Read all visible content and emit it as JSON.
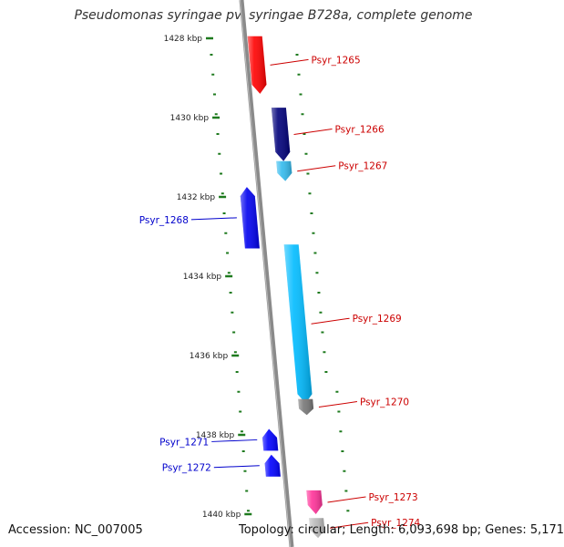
{
  "title": "Pseudomonas syringae pv. syringae B728a, complete genome",
  "footer": {
    "accession": "Accession: NC_007005",
    "topology": "Topology: circular; Length: 6,093,698 bp; Genes: 5,171"
  },
  "colors": {
    "backbone": "#8a8a8a",
    "tick": "#1e7a1e",
    "label_forward": "#cc0000",
    "label_reverse": "#0000cc"
  },
  "ticks": [
    {
      "label": "1428 kbp",
      "pos": 1428
    },
    {
      "label": "1430 kbp",
      "pos": 1430
    },
    {
      "label": "1432 kbp",
      "pos": 1432
    },
    {
      "label": "1434 kbp",
      "pos": 1434
    },
    {
      "label": "1436 kbp",
      "pos": 1436
    },
    {
      "label": "1438 kbp",
      "pos": 1438
    },
    {
      "label": "1440 kbp",
      "pos": 1440
    }
  ],
  "genes": [
    {
      "name": "Psyr_1265",
      "strand": "+",
      "start": 1427.95,
      "end": 1429.4,
      "color": "#ff0000",
      "label_color": "#cc0000"
    },
    {
      "name": "Psyr_1266",
      "strand": "+",
      "start": 1429.75,
      "end": 1431.1,
      "color": "#00007a",
      "label_color": "#cc0000"
    },
    {
      "name": "Psyr_1267",
      "strand": "+",
      "start": 1431.1,
      "end": 1431.6,
      "color": "#33bbee",
      "label_color": "#cc0000"
    },
    {
      "name": "Psyr_1268",
      "strand": "-",
      "start": 1431.75,
      "end": 1433.3,
      "color": "#0000ee",
      "label_color": "#0000cc"
    },
    {
      "name": "Psyr_1269",
      "strand": "+",
      "start": 1433.2,
      "end": 1437.2,
      "color": "#00bbff",
      "label_color": "#cc0000"
    },
    {
      "name": "Psyr_1270",
      "strand": "+",
      "start": 1437.1,
      "end": 1437.5,
      "color": "#777777",
      "label_color": "#cc0000"
    },
    {
      "name": "Psyr_1271",
      "strand": "-",
      "start": 1437.85,
      "end": 1438.4,
      "color": "#0000ff",
      "label_color": "#0000cc"
    },
    {
      "name": "Psyr_1272",
      "strand": "-",
      "start": 1438.5,
      "end": 1439.05,
      "color": "#0000ff",
      "label_color": "#0000cc"
    },
    {
      "name": "Psyr_1273",
      "strand": "+",
      "start": 1439.4,
      "end": 1440.0,
      "color": "#ff3399",
      "label_color": "#cc0000"
    },
    {
      "name": "Psyr_1274",
      "strand": "+",
      "start": 1440.1,
      "end": 1440.6,
      "color": "#bbbbbb",
      "label_color": "#cc0000"
    }
  ]
}
